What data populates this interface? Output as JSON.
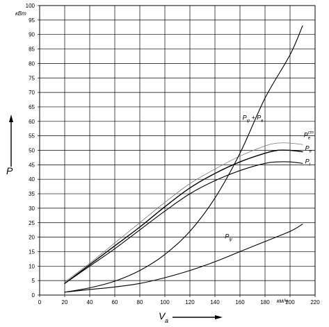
{
  "chart_data": {
    "type": "line",
    "xlim": [
      0,
      220
    ],
    "ylim": [
      0,
      100
    ],
    "x_ticks": [
      "0",
      "20",
      "40",
      "60",
      "80",
      "100",
      "120",
      "140",
      "160",
      "180",
      "200",
      "220"
    ],
    "y_ticks": [
      "0",
      "5",
      "10",
      "15",
      "20",
      "25",
      "30",
      "35",
      "40",
      "45",
      "50",
      "55",
      "60",
      "65",
      "70",
      "75",
      "80",
      "85",
      "90",
      "95",
      "100"
    ],
    "x_unit": "км/ч",
    "y_unit": "кВт",
    "xlabel": "V",
    "xlabel_sub": "a",
    "ylabel": "P",
    "grid": true,
    "series": [
      {
        "name": "Pe",
        "name_sup": "cm",
        "stroke_color": "#777777",
        "stroke_width": 0.8,
        "x": [
          20,
          40,
          60,
          80,
          100,
          120,
          140,
          160,
          180,
          190,
          200,
          210
        ],
        "y": [
          4.5,
          11,
          18,
          25,
          32,
          38.5,
          43.5,
          48,
          51.5,
          52.5,
          52.5,
          52
        ]
      },
      {
        "name": "Pe",
        "stroke_color": "#000000",
        "stroke_width": 1.4,
        "x": [
          20,
          40,
          60,
          80,
          100,
          120,
          140,
          160,
          180,
          190,
          200,
          210
        ],
        "y": [
          4,
          10.5,
          17,
          23.5,
          30.5,
          37,
          42,
          46,
          49,
          50,
          50,
          49.5
        ]
      },
      {
        "name": "Pt",
        "stroke_color": "#000000",
        "stroke_width": 1.1,
        "x": [
          20,
          40,
          60,
          80,
          100,
          120,
          140,
          160,
          180,
          190,
          200,
          210
        ],
        "y": [
          4,
          10,
          16,
          22.5,
          29,
          35,
          39.5,
          43,
          45.5,
          46,
          46,
          45.5
        ]
      },
      {
        "name": "Pψ+Pв",
        "stroke_color": "#000000",
        "stroke_width": 1.1,
        "x": [
          20,
          40,
          60,
          80,
          100,
          120,
          140,
          160,
          180,
          200,
          210
        ],
        "y": [
          1,
          2.5,
          4.8,
          8.5,
          14,
          22,
          33.5,
          49,
          68,
          83,
          93
        ]
      },
      {
        "name": "Pψ",
        "stroke_color": "#000000",
        "stroke_width": 1.1,
        "x": [
          20,
          40,
          60,
          80,
          100,
          120,
          140,
          160,
          180,
          200,
          210
        ],
        "y": [
          1,
          1.9,
          2.8,
          4,
          6,
          8.5,
          11.5,
          15,
          18.5,
          22,
          24.5
        ]
      }
    ],
    "labels": [
      {
        "main": "P",
        "sub": "ψ",
        "mid": " + ",
        "main2": "P",
        "sub2": "в",
        "x": 162,
        "y": 60.5
      },
      {
        "main": "P",
        "sub": "e",
        "sup": "cm",
        "x": 211,
        "y": 54.5
      },
      {
        "main": "P",
        "sub": "e",
        "x": 212,
        "y": 50
      },
      {
        "main": "P",
        "sub": "t",
        "x": 212,
        "y": 45.5
      },
      {
        "main": "P",
        "sub": "ψ",
        "x": 148,
        "y": 19.5
      }
    ]
  }
}
